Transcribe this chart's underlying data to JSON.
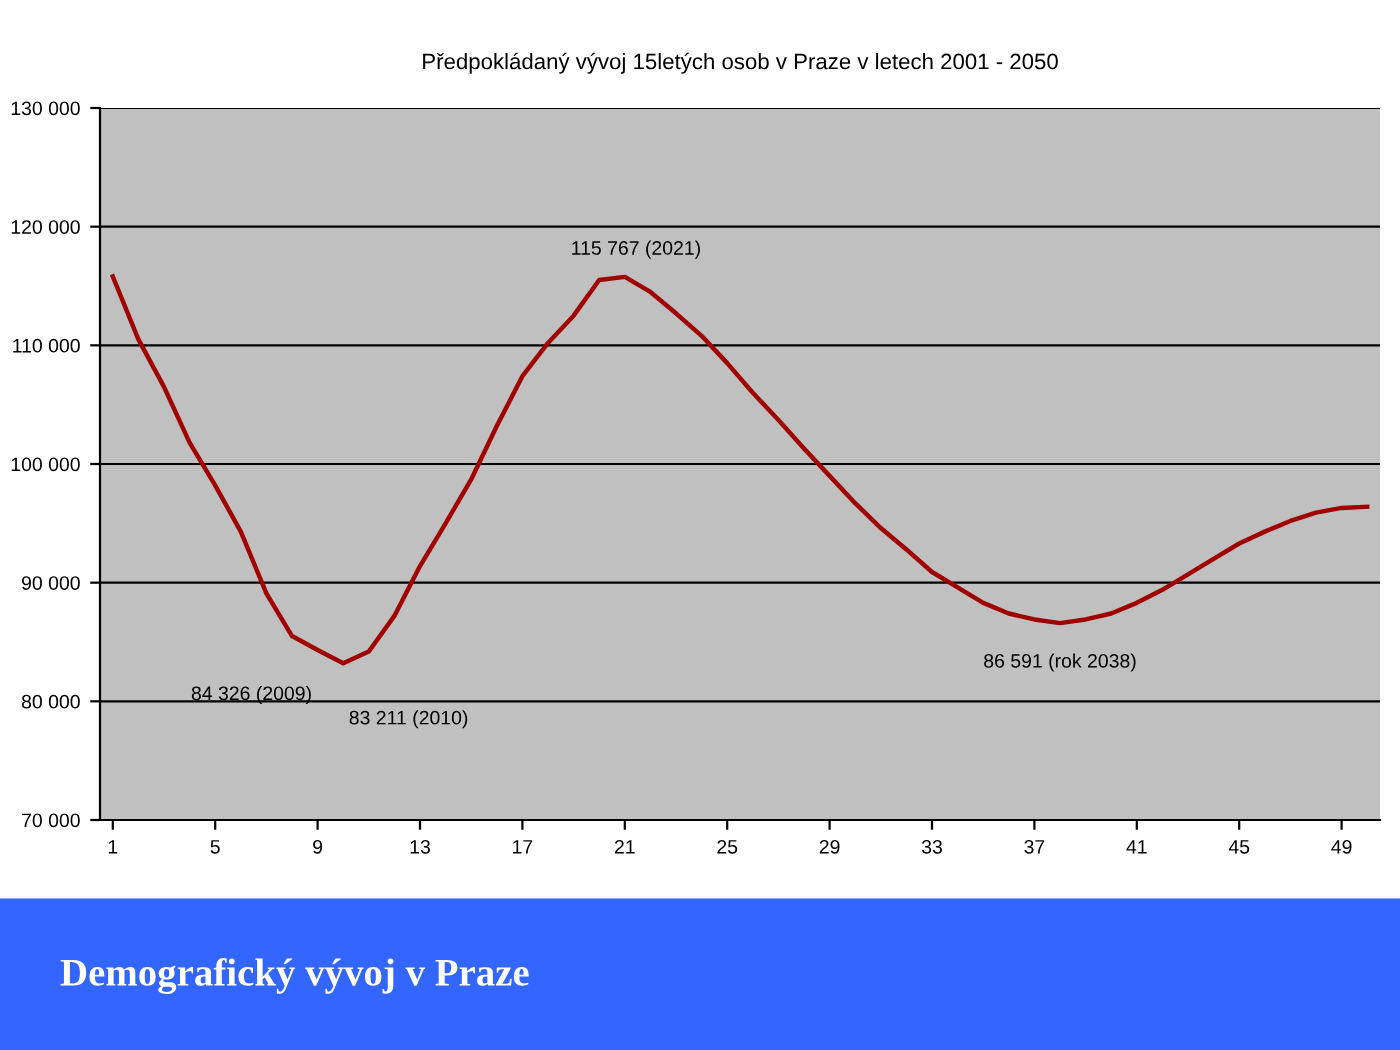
{
  "chart_data": {
    "type": "line",
    "title": "Předpokládaný vývoj 15letých osob v Praze v letech 2001 - 2050",
    "x": [
      1,
      2,
      3,
      4,
      5,
      6,
      7,
      8,
      9,
      10,
      11,
      12,
      13,
      14,
      15,
      16,
      17,
      18,
      19,
      20,
      21,
      22,
      23,
      24,
      25,
      26,
      27,
      28,
      29,
      30,
      31,
      32,
      33,
      34,
      35,
      36,
      37,
      38,
      39,
      40,
      41,
      42,
      43,
      44,
      45,
      46,
      47,
      48,
      49,
      50
    ],
    "series": [
      {
        "color": "#a00000",
        "values": [
          115800,
          110500,
          106500,
          101800,
          98200,
          94300,
          89100,
          85500,
          84326,
          83211,
          84200,
          87200,
          91400,
          95000,
          98700,
          103200,
          107400,
          110200,
          112500,
          115500,
          115767,
          114500,
          112700,
          110800,
          108500,
          106000,
          103700,
          101300,
          99000,
          96700,
          94600,
          92800,
          90900,
          89600,
          88300,
          87400,
          86900,
          86591,
          86900,
          87400,
          88300,
          89400,
          90700,
          92000,
          93300,
          94300,
          95200,
          95900,
          96300,
          96400
        ]
      }
    ],
    "xlim": [
      0.5,
      50.5
    ],
    "xticks": [
      1,
      5,
      9,
      13,
      17,
      21,
      25,
      29,
      33,
      37,
      41,
      45,
      49
    ],
    "ylim": [
      70000,
      130000
    ],
    "yticks": [
      {
        "value": 70000,
        "label": "70 000"
      },
      {
        "value": 80000,
        "label": "80 000"
      },
      {
        "value": 90000,
        "label": "90 000"
      },
      {
        "value": 100000,
        "label": "100 000"
      },
      {
        "value": 110000,
        "label": "110 000"
      },
      {
        "value": 120000,
        "label": "120 000"
      },
      {
        "value": 130000,
        "label": "130 000"
      }
    ],
    "grid": "y",
    "annotations": [
      {
        "text": "84 326 (2009)",
        "x": 9,
        "y": 84326
      },
      {
        "text": "83 211 (2010)",
        "x": 10,
        "y": 83211
      },
      {
        "text": "115 767 (2021)",
        "x": 21,
        "y": 115767
      },
      {
        "text": "86 591 (rok 2038)",
        "x": 38,
        "y": 86591
      },
      "Demografický vývoj v Praze"
    ]
  }
}
